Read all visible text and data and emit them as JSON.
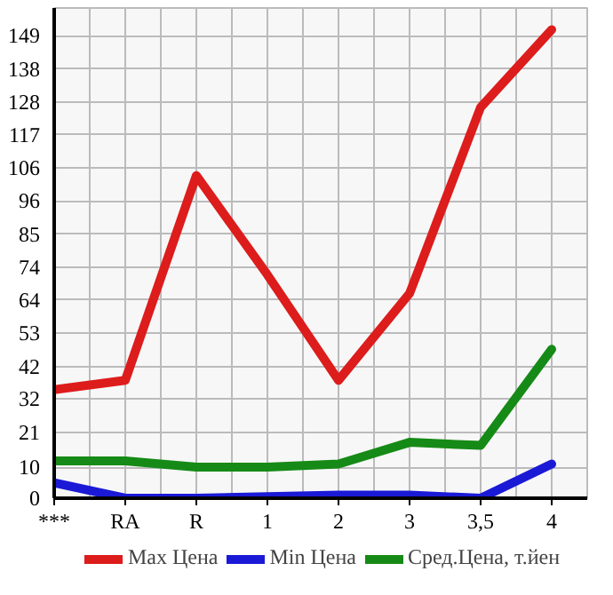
{
  "chart_data": {
    "type": "line",
    "categories": [
      "***",
      "RA",
      "R",
      "1",
      "2",
      "3",
      "3,5",
      "4"
    ],
    "ylim": [
      0,
      158
    ],
    "yticks": [
      0,
      10,
      {
        "value": 21.29,
        "label": "21"
      },
      {
        "value": 31.93,
        "label": "32"
      },
      {
        "value": 42.4,
        "label": "42"
      },
      {
        "value": 53.21,
        "label": "53"
      },
      {
        "value": 63.86,
        "label": "64"
      },
      {
        "value": 74.5,
        "label": "74"
      },
      {
        "value": 85.14,
        "label": "85"
      },
      {
        "value": 95.79,
        "label": "96"
      },
      {
        "value": 106.43,
        "label": "106"
      },
      {
        "value": 117.07,
        "label": "117"
      },
      {
        "value": 127.71,
        "label": "128"
      },
      {
        "value": 138.36,
        "label": "138"
      },
      149
    ],
    "grid": true,
    "legend": "bottom",
    "marker": "none",
    "line_style": "solid",
    "series": [
      {
        "name": "Max Цена",
        "color": "#dd1c1c",
        "values": [
          35,
          38,
          104,
          72,
          38,
          66,
          126,
          151
        ]
      },
      {
        "name": "Min Цена",
        "color": "#1a1ad6",
        "values": [
          5,
          0,
          0,
          0.5,
          1,
          1,
          0,
          11
        ]
      },
      {
        "name": "Сред.Цена, т.йен",
        "color": "#168a16",
        "values": [
          12,
          12,
          10,
          10,
          11,
          18,
          17,
          48
        ]
      }
    ]
  }
}
